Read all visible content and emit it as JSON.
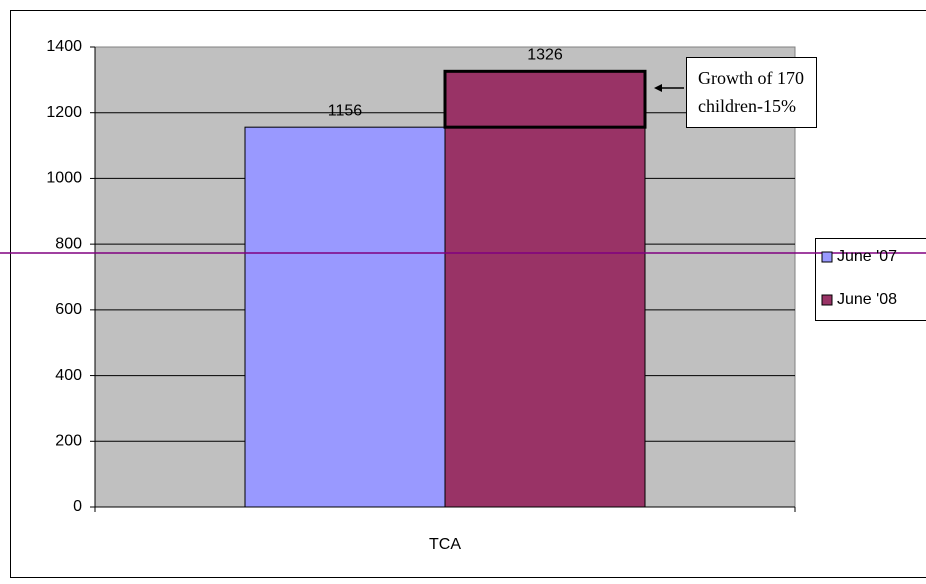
{
  "chart_data": {
    "type": "bar",
    "categories": [
      "TCA"
    ],
    "series": [
      {
        "name": "June '07",
        "color": "#9999ff",
        "values": [
          1156
        ]
      },
      {
        "name": "June '08",
        "color": "#993366",
        "values": [
          1326
        ]
      }
    ],
    "ylim": [
      0,
      1400
    ],
    "yticks": [
      0,
      200,
      400,
      600,
      800,
      1000,
      1200,
      1400
    ],
    "grid": true,
    "legend": "right",
    "annotation": [
      "Growth of 170",
      "children-15%"
    ]
  }
}
